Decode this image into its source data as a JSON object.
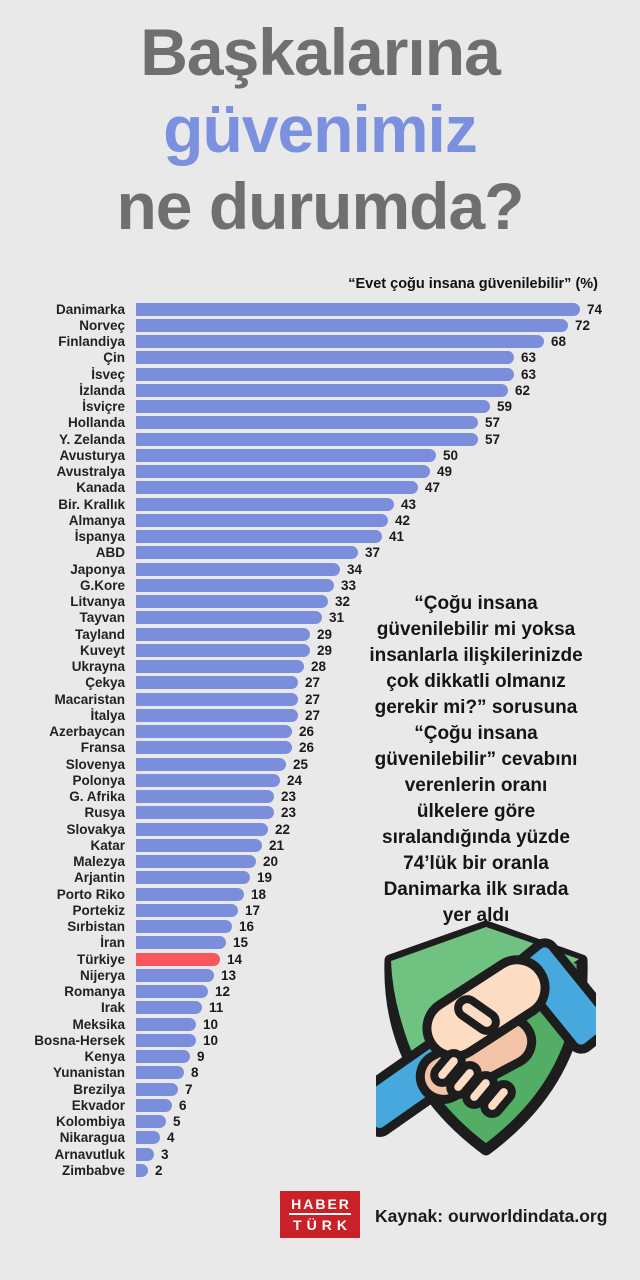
{
  "colors": {
    "background": "#e9e9e9",
    "title_gray": "#6f6f6f",
    "accent_blue": "#7c90e0",
    "bar_blue": "#7b8edb",
    "bar_red": "#f7575d",
    "logo_red": "#c92128",
    "text_dark": "#1a1a1a"
  },
  "title": {
    "line1": "Başkalarına",
    "line2": "güvenimiz",
    "line3": "ne durumda?"
  },
  "subtitle": "“Evet çoğu insana güvenilebilir” (%)",
  "chart_data": {
    "type": "bar",
    "orientation": "horizontal",
    "unit": "%",
    "title": "Başkalarına güvenimiz ne durumda?",
    "subtitle": "“Evet çoğu insana güvenilebilir” (%)",
    "xlim": [
      0,
      80
    ],
    "grid": false,
    "legend": false,
    "highlight_category": "Türkiye",
    "categories": [
      "Danimarka",
      "Norveç",
      "Finlandiya",
      "Çin",
      "İsveç",
      "İzlanda",
      "İsviçre",
      "Hollanda",
      "Y. Zelanda",
      "Avusturya",
      "Avustralya",
      "Kanada",
      "Bir. Krallık",
      "Almanya",
      "İspanya",
      "ABD",
      "Japonya",
      "G.Kore",
      "Litvanya",
      "Tayvan",
      "Tayland",
      "Kuveyt",
      "Ukrayna",
      "Çekya",
      "Macaristan",
      "İtalya",
      "Azerbaycan",
      "Fransa",
      "Slovenya",
      "Polonya",
      "G. Afrika",
      "Rusya",
      "Slovakya",
      "Katar",
      "Malezya",
      "Arjantin",
      "Porto Riko",
      "Portekiz",
      "Sırbistan",
      "İran",
      "Türkiye",
      "Nijerya",
      "Romanya",
      "Irak",
      "Meksika",
      "Bosna-Hersek",
      "Kenya",
      "Yunanistan",
      "Brezilya",
      "Ekvador",
      "Kolombiya",
      "Nikaragua",
      "Arnavutluk",
      "Zimbabve"
    ],
    "values": [
      74,
      72,
      68,
      63,
      63,
      62,
      59,
      57,
      57,
      50,
      49,
      47,
      43,
      42,
      41,
      37,
      34,
      33,
      32,
      31,
      29,
      29,
      28,
      27,
      27,
      27,
      26,
      26,
      25,
      24,
      23,
      23,
      22,
      21,
      20,
      19,
      18,
      17,
      16,
      15,
      14,
      13,
      12,
      11,
      10,
      10,
      9,
      8,
      7,
      6,
      5,
      4,
      3,
      2
    ]
  },
  "annotation": {
    "lines": [
      "“Çoğu insana",
      "güvenilebilir mi yoksa",
      "insanlarla ilişkilerinizde",
      "çok dikkatli olmanız",
      "gerekir mi?” sorusuna",
      "“Çoğu insana",
      "güvenilebilir” cevabını",
      "verenlerin oranı",
      "ülkelere göre",
      "sıralandığında yüzde",
      "74’lük bir oranla",
      "Danimarka ilk sırada",
      "yer aldı"
    ]
  },
  "footer": {
    "logo_top": "HABER",
    "logo_bottom": "TÜRK",
    "source": "Kaynak: ourworldindata.org"
  }
}
